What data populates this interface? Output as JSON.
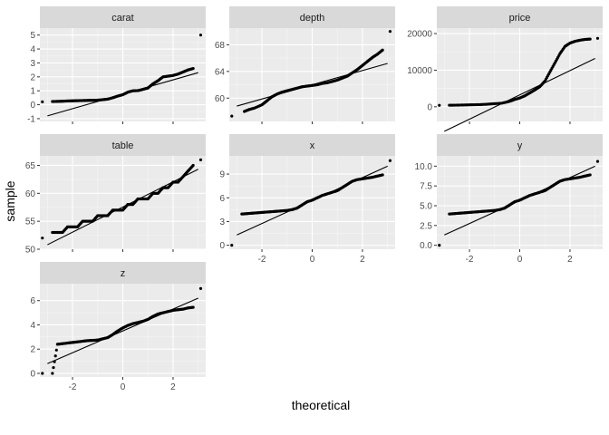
{
  "chart_data": {
    "type": "scatter",
    "xlabel": "theoretical",
    "ylabel": "sample",
    "grid": true,
    "xlim": [
      -3.3,
      3.3
    ],
    "x_ticks": [
      -2,
      0,
      2
    ],
    "panels": [
      {
        "name": "carat",
        "ylim": [
          -1.2,
          5.5
        ],
        "y_ticks": [
          -1,
          0,
          1,
          2,
          3,
          4,
          5
        ],
        "line": [
          [
            -3.0,
            -0.8
          ],
          [
            3.0,
            2.3
          ]
        ],
        "points": [
          [
            -3.2,
            0.21
          ],
          [
            -2.8,
            0.23
          ],
          [
            -2.6,
            0.24
          ],
          [
            -2.4,
            0.25
          ],
          [
            -2.2,
            0.27
          ],
          [
            -2.0,
            0.28
          ],
          [
            -1.8,
            0.29
          ],
          [
            -1.6,
            0.3
          ],
          [
            -1.4,
            0.31
          ],
          [
            -1.2,
            0.31
          ],
          [
            -1.0,
            0.33
          ],
          [
            -0.8,
            0.36
          ],
          [
            -0.6,
            0.4
          ],
          [
            -0.4,
            0.5
          ],
          [
            -0.2,
            0.62
          ],
          [
            0.0,
            0.72
          ],
          [
            0.2,
            0.9
          ],
          [
            0.4,
            1.0
          ],
          [
            0.6,
            1.01
          ],
          [
            0.8,
            1.1
          ],
          [
            1.0,
            1.2
          ],
          [
            1.2,
            1.5
          ],
          [
            1.4,
            1.72
          ],
          [
            1.6,
            2.0
          ],
          [
            1.8,
            2.05
          ],
          [
            2.0,
            2.1
          ],
          [
            2.2,
            2.2
          ],
          [
            2.4,
            2.35
          ],
          [
            2.6,
            2.5
          ],
          [
            2.8,
            2.6
          ],
          [
            3.1,
            5.0
          ]
        ]
      },
      {
        "name": "depth",
        "ylim": [
          56.5,
          70.5
        ],
        "y_ticks": [
          60,
          64,
          68
        ],
        "line": [
          [
            -3.0,
            58.8
          ],
          [
            3.0,
            65.2
          ]
        ],
        "points": [
          [
            -3.2,
            57.3
          ],
          [
            -2.7,
            58.0
          ],
          [
            -2.5,
            58.3
          ],
          [
            -2.3,
            58.5
          ],
          [
            -2.0,
            59.0
          ],
          [
            -1.8,
            59.6
          ],
          [
            -1.6,
            60.2
          ],
          [
            -1.4,
            60.6
          ],
          [
            -1.2,
            60.9
          ],
          [
            -1.0,
            61.1
          ],
          [
            -0.8,
            61.3
          ],
          [
            -0.6,
            61.5
          ],
          [
            -0.4,
            61.7
          ],
          [
            -0.2,
            61.8
          ],
          [
            0.0,
            61.9
          ],
          [
            0.2,
            62.0
          ],
          [
            0.4,
            62.2
          ],
          [
            0.6,
            62.3
          ],
          [
            0.8,
            62.5
          ],
          [
            1.0,
            62.7
          ],
          [
            1.2,
            63.0
          ],
          [
            1.4,
            63.3
          ],
          [
            1.6,
            63.8
          ],
          [
            1.8,
            64.3
          ],
          [
            2.0,
            64.9
          ],
          [
            2.2,
            65.5
          ],
          [
            2.4,
            66.1
          ],
          [
            2.6,
            66.6
          ],
          [
            2.8,
            67.2
          ],
          [
            3.1,
            70.0
          ]
        ]
      },
      {
        "name": "price",
        "ylim": [
          -4000,
          21500
        ],
        "y_ticks": [
          0,
          10000,
          20000
        ],
        "line": [
          [
            -3.0,
            -6700
          ],
          [
            3.0,
            13200
          ]
        ],
        "points": [
          [
            -3.2,
            400
          ],
          [
            -2.8,
            420
          ],
          [
            -2.5,
            450
          ],
          [
            -2.2,
            500
          ],
          [
            -1.9,
            550
          ],
          [
            -1.6,
            600
          ],
          [
            -1.3,
            700
          ],
          [
            -1.0,
            850
          ],
          [
            -0.7,
            1000
          ],
          [
            -0.4,
            1500
          ],
          [
            -0.2,
            2000
          ],
          [
            0.0,
            2400
          ],
          [
            0.2,
            3000
          ],
          [
            0.4,
            3800
          ],
          [
            0.6,
            4600
          ],
          [
            0.8,
            5500
          ],
          [
            1.0,
            7000
          ],
          [
            1.2,
            9500
          ],
          [
            1.4,
            12000
          ],
          [
            1.6,
            14500
          ],
          [
            1.8,
            16500
          ],
          [
            2.0,
            17400
          ],
          [
            2.2,
            17900
          ],
          [
            2.4,
            18200
          ],
          [
            2.6,
            18400
          ],
          [
            2.8,
            18500
          ],
          [
            3.1,
            18700
          ]
        ]
      },
      {
        "name": "table",
        "ylim": [
          50,
          66.7
        ],
        "y_ticks": [
          50,
          55,
          60,
          65
        ],
        "line": [
          [
            -3.0,
            50.8
          ],
          [
            3.0,
            64.3
          ]
        ],
        "points": [
          [
            -3.2,
            52.0
          ],
          [
            -2.8,
            53.0
          ],
          [
            -2.6,
            53.0
          ],
          [
            -2.4,
            53.0
          ],
          [
            -2.2,
            54.0
          ],
          [
            -2.0,
            54.0
          ],
          [
            -1.8,
            54.0
          ],
          [
            -1.6,
            55.0
          ],
          [
            -1.4,
            55.0
          ],
          [
            -1.2,
            55.0
          ],
          [
            -1.0,
            56.0
          ],
          [
            -0.8,
            56.0
          ],
          [
            -0.6,
            56.0
          ],
          [
            -0.4,
            57.0
          ],
          [
            -0.2,
            57.0
          ],
          [
            0.0,
            57.0
          ],
          [
            0.2,
            58.0
          ],
          [
            0.4,
            58.0
          ],
          [
            0.6,
            59.0
          ],
          [
            0.8,
            59.0
          ],
          [
            1.0,
            59.0
          ],
          [
            1.2,
            60.0
          ],
          [
            1.4,
            60.0
          ],
          [
            1.6,
            61.0
          ],
          [
            1.8,
            61.0
          ],
          [
            2.0,
            62.0
          ],
          [
            2.2,
            62.0
          ],
          [
            2.4,
            63.0
          ],
          [
            2.6,
            64.0
          ],
          [
            2.8,
            65.0
          ],
          [
            3.1,
            66.0
          ]
        ]
      },
      {
        "name": "x",
        "ylim": [
          -0.5,
          11.3
        ],
        "y_ticks": [
          0,
          3,
          6,
          9
        ],
        "line": [
          [
            -3.0,
            1.3
          ],
          [
            3.0,
            10.0
          ]
        ],
        "points": [
          [
            -3.2,
            0.0
          ],
          [
            -2.8,
            3.95
          ],
          [
            -2.6,
            4.0
          ],
          [
            -2.4,
            4.05
          ],
          [
            -2.2,
            4.1
          ],
          [
            -2.0,
            4.15
          ],
          [
            -1.8,
            4.2
          ],
          [
            -1.6,
            4.25
          ],
          [
            -1.4,
            4.3
          ],
          [
            -1.2,
            4.35
          ],
          [
            -1.0,
            4.4
          ],
          [
            -0.8,
            4.5
          ],
          [
            -0.6,
            4.7
          ],
          [
            -0.4,
            5.1
          ],
          [
            -0.2,
            5.5
          ],
          [
            0.0,
            5.7
          ],
          [
            0.2,
            6.0
          ],
          [
            0.4,
            6.3
          ],
          [
            0.6,
            6.5
          ],
          [
            0.8,
            6.7
          ],
          [
            1.0,
            6.9
          ],
          [
            1.2,
            7.3
          ],
          [
            1.4,
            7.7
          ],
          [
            1.6,
            8.1
          ],
          [
            1.8,
            8.3
          ],
          [
            2.0,
            8.4
          ],
          [
            2.2,
            8.5
          ],
          [
            2.4,
            8.6
          ],
          [
            2.6,
            8.75
          ],
          [
            2.8,
            8.9
          ],
          [
            3.1,
            10.7
          ]
        ]
      },
      {
        "name": "y",
        "ylim": [
          -0.5,
          11.3
        ],
        "y_ticks": [
          0.0,
          2.5,
          5.0,
          7.5,
          10.0
        ],
        "line": [
          [
            -3.0,
            1.3
          ],
          [
            3.0,
            10.0
          ]
        ],
        "points": [
          [
            -3.2,
            0.0
          ],
          [
            -2.8,
            3.95
          ],
          [
            -2.6,
            4.0
          ],
          [
            -2.4,
            4.05
          ],
          [
            -2.2,
            4.1
          ],
          [
            -2.0,
            4.15
          ],
          [
            -1.8,
            4.2
          ],
          [
            -1.6,
            4.25
          ],
          [
            -1.4,
            4.3
          ],
          [
            -1.2,
            4.35
          ],
          [
            -1.0,
            4.4
          ],
          [
            -0.8,
            4.5
          ],
          [
            -0.6,
            4.7
          ],
          [
            -0.4,
            5.1
          ],
          [
            -0.2,
            5.5
          ],
          [
            0.0,
            5.7
          ],
          [
            0.2,
            6.0
          ],
          [
            0.4,
            6.3
          ],
          [
            0.6,
            6.5
          ],
          [
            0.8,
            6.7
          ],
          [
            1.0,
            6.9
          ],
          [
            1.2,
            7.3
          ],
          [
            1.4,
            7.7
          ],
          [
            1.6,
            8.1
          ],
          [
            1.8,
            8.3
          ],
          [
            2.0,
            8.4
          ],
          [
            2.2,
            8.5
          ],
          [
            2.4,
            8.6
          ],
          [
            2.6,
            8.75
          ],
          [
            2.8,
            8.9
          ],
          [
            3.1,
            10.6
          ]
        ]
      },
      {
        "name": "z",
        "ylim": [
          -0.3,
          7.4
        ],
        "y_ticks": [
          0,
          2,
          4,
          6
        ],
        "line": [
          [
            -3.0,
            0.8
          ],
          [
            3.0,
            6.2
          ]
        ],
        "points": [
          [
            -3.2,
            0.0
          ],
          [
            -2.8,
            0.0
          ],
          [
            -2.6,
            2.4
          ],
          [
            -2.4,
            2.45
          ],
          [
            -2.2,
            2.5
          ],
          [
            -2.0,
            2.55
          ],
          [
            -1.8,
            2.6
          ],
          [
            -1.6,
            2.65
          ],
          [
            -1.4,
            2.7
          ],
          [
            -1.2,
            2.72
          ],
          [
            -1.0,
            2.75
          ],
          [
            -0.8,
            2.85
          ],
          [
            -0.6,
            2.95
          ],
          [
            -0.4,
            3.2
          ],
          [
            -0.2,
            3.5
          ],
          [
            0.0,
            3.75
          ],
          [
            0.2,
            3.95
          ],
          [
            0.4,
            4.1
          ],
          [
            0.6,
            4.2
          ],
          [
            0.8,
            4.3
          ],
          [
            1.0,
            4.45
          ],
          [
            1.2,
            4.7
          ],
          [
            1.4,
            4.9
          ],
          [
            1.6,
            5.0
          ],
          [
            1.8,
            5.1
          ],
          [
            2.0,
            5.2
          ],
          [
            2.2,
            5.25
          ],
          [
            2.4,
            5.3
          ],
          [
            2.6,
            5.4
          ],
          [
            2.8,
            5.45
          ],
          [
            3.1,
            7.0
          ]
        ]
      }
    ]
  }
}
